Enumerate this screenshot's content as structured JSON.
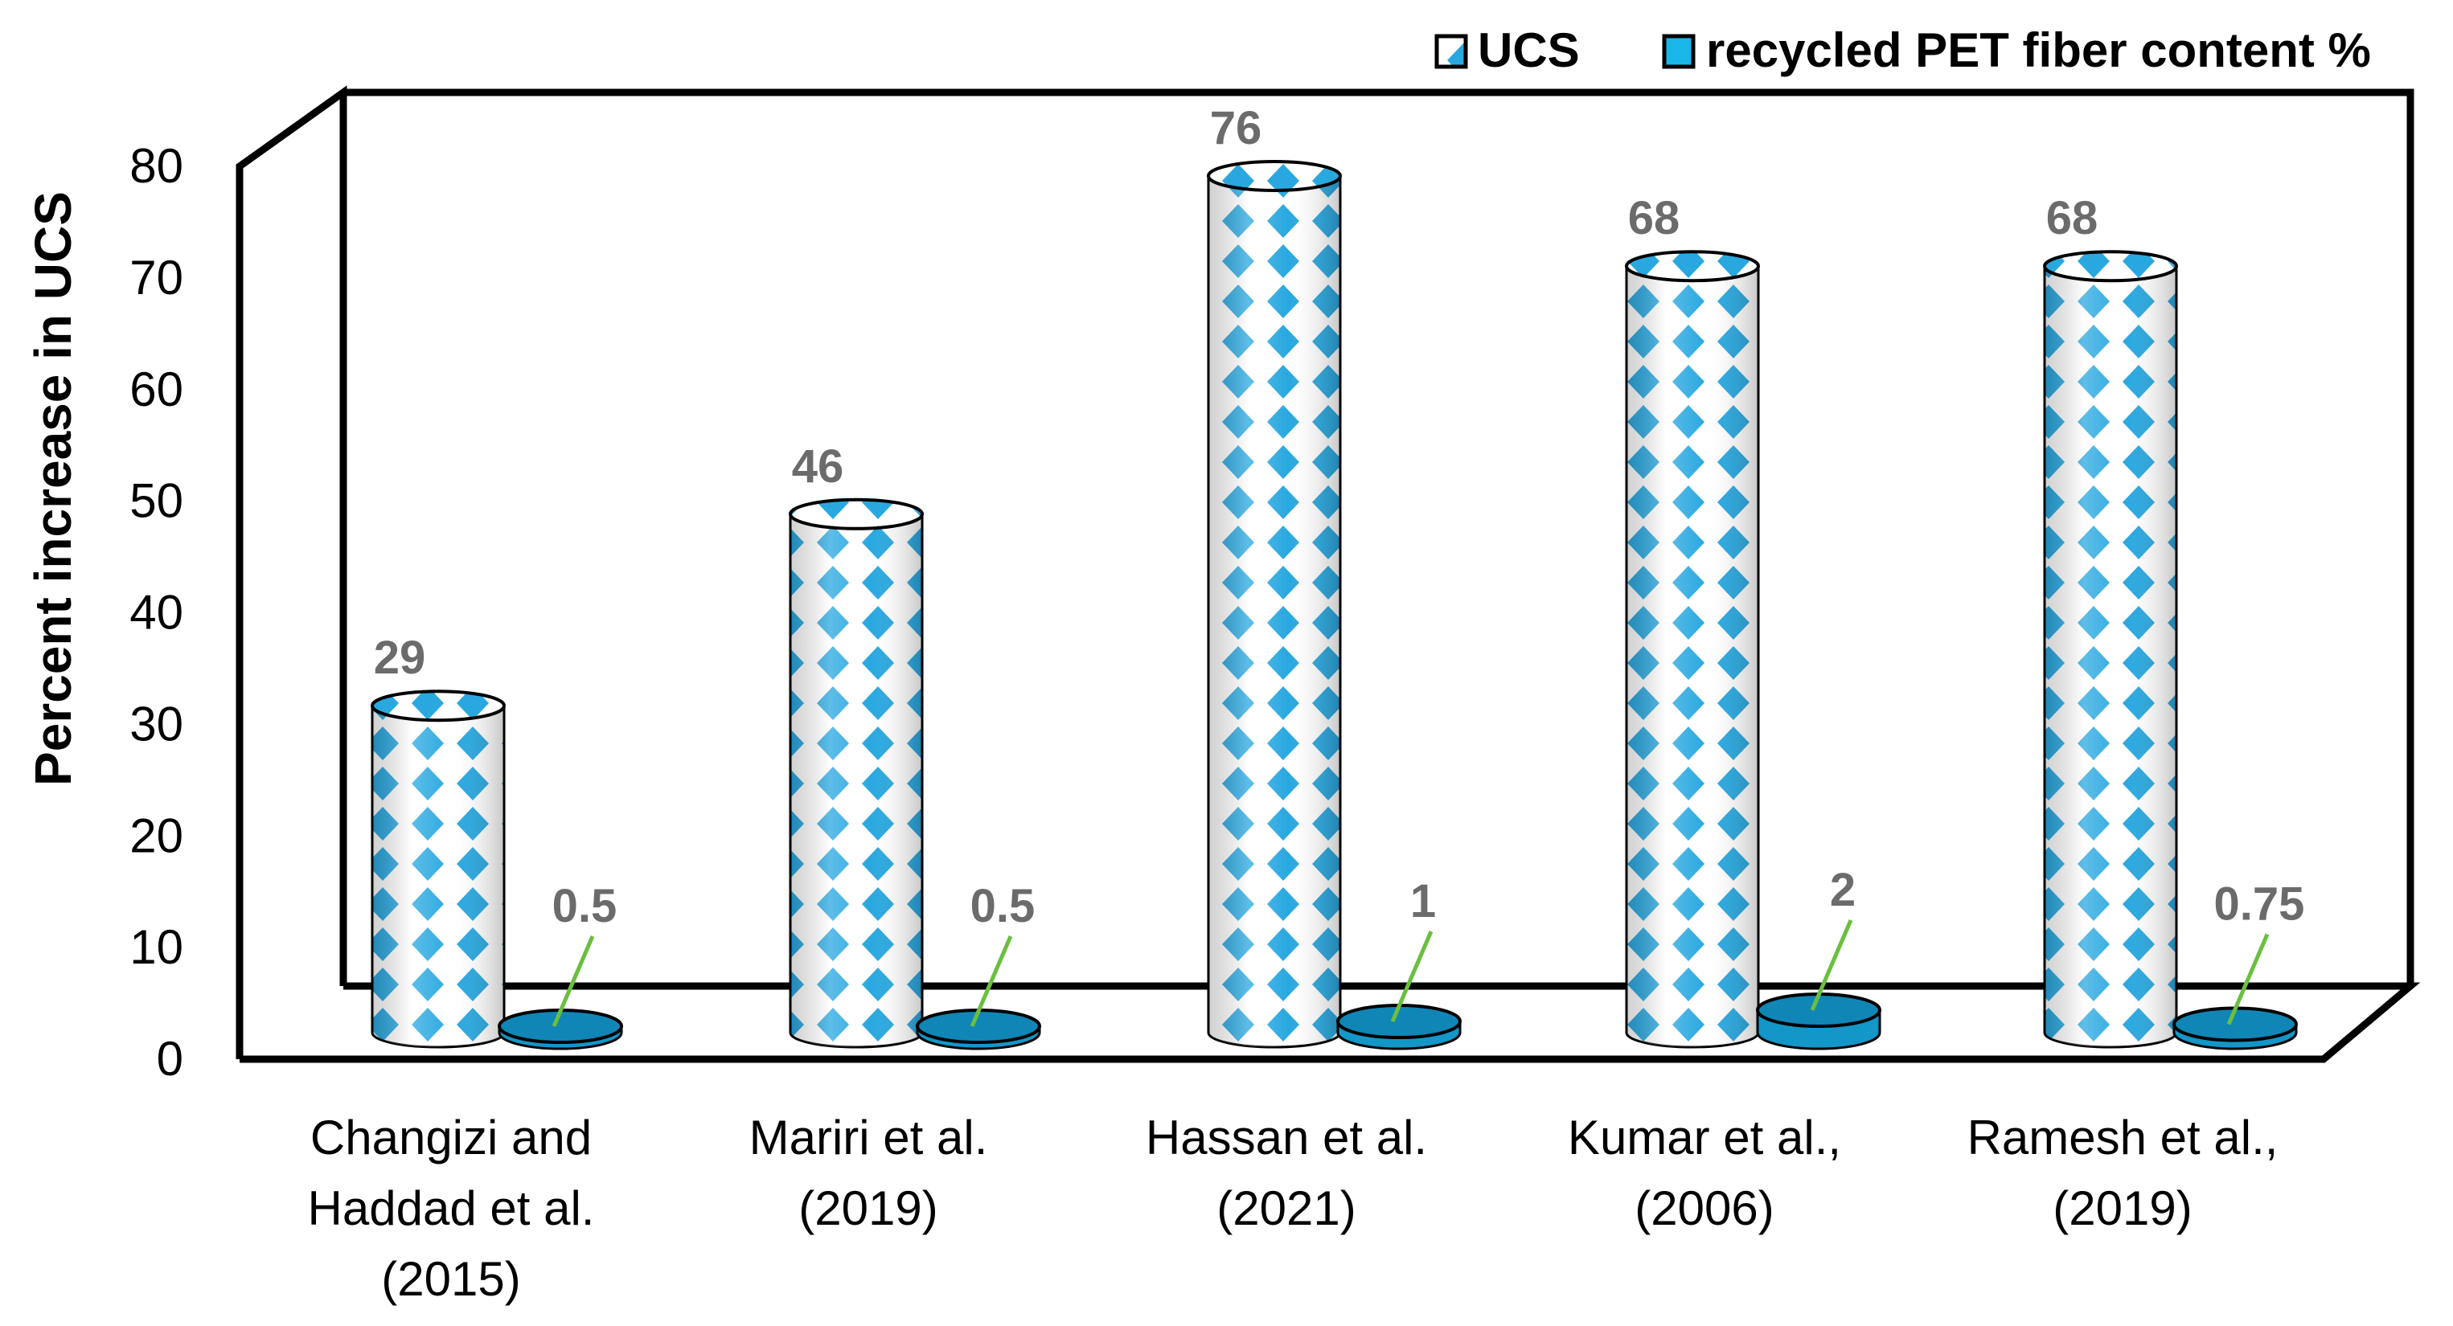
{
  "chart_data": {
    "type": "bar",
    "title": "",
    "xlabel": "",
    "ylabel": "Percent increase in UCS",
    "ylim": [
      0,
      80
    ],
    "yticks": [
      0,
      10,
      20,
      30,
      40,
      50,
      60,
      70,
      80
    ],
    "categories": [
      [
        "Changizi and",
        "Haddad et al.",
        "(2015)"
      ],
      [
        "Mariri et al.",
        "(2019)"
      ],
      [
        "Hassan et al.",
        "(2021)"
      ],
      [
        "Kumar et al.,",
        "(2006)"
      ],
      [
        "Ramesh et al.,",
        "(2019)"
      ]
    ],
    "series": [
      {
        "name": "UCS",
        "values": [
          29,
          46,
          76,
          68,
          68
        ],
        "labels": [
          "29",
          "46",
          "76",
          "68",
          "68"
        ]
      },
      {
        "name": "recycled PET fiber content %",
        "values": [
          0.5,
          0.5,
          1,
          2,
          0.75
        ],
        "labels": [
          "0.5",
          "0.5",
          "1",
          "2",
          "0.75"
        ]
      }
    ],
    "legend_position": "top-right",
    "colors": {
      "ucs_pattern": "#29a8e0",
      "pet_fill": "#1396c8",
      "pet_top": "#0f86b6",
      "label": "#6b6b6b",
      "leader": "#6bbf3f"
    }
  }
}
